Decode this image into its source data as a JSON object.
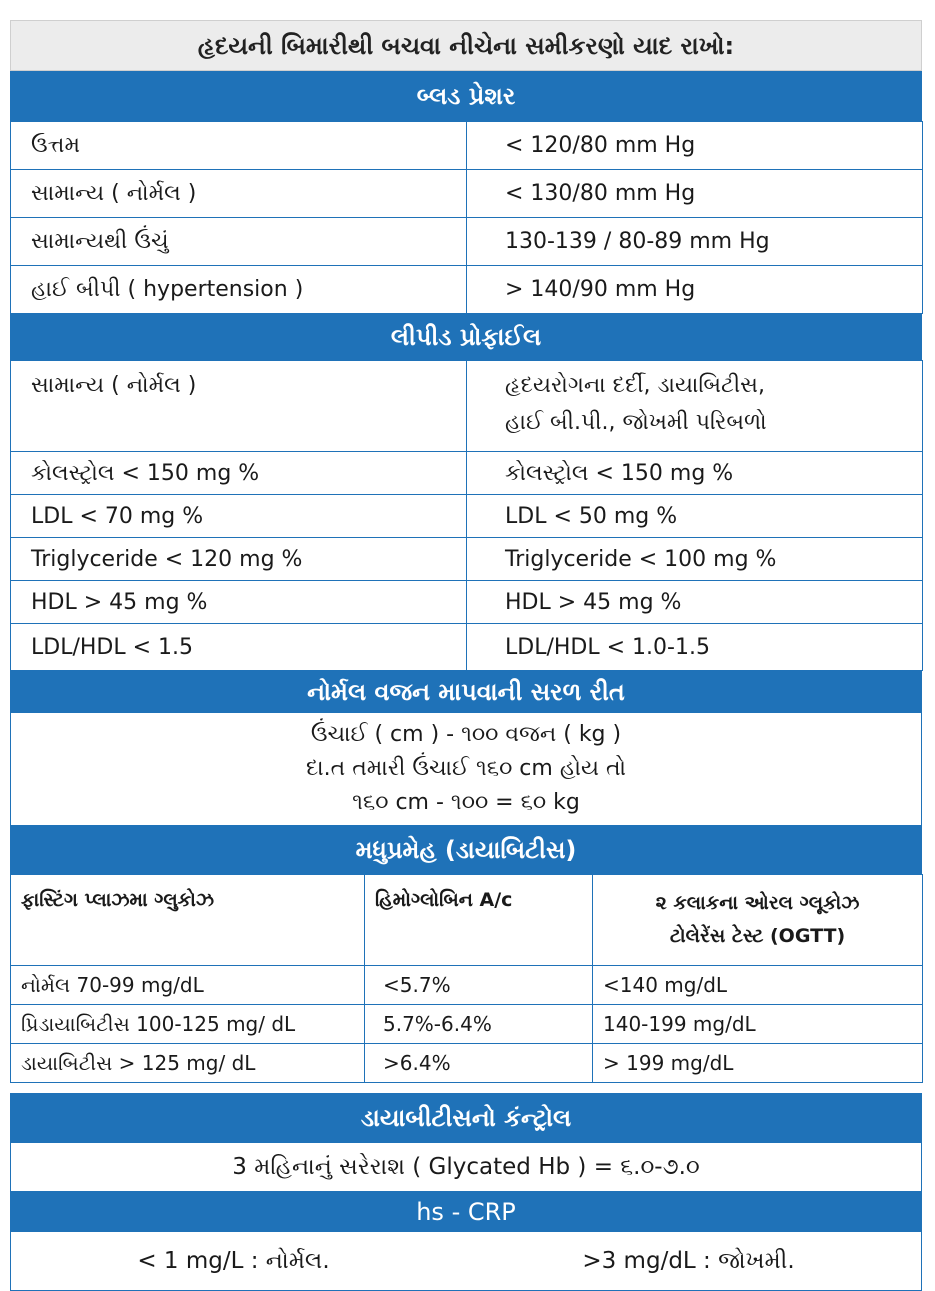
{
  "title": "હૃદયની બિમારીથી બચવા નીચેના સમીકરણો યાદ રાખો:",
  "blood_pressure": {
    "header": "બ્લડ પ્રેશર",
    "rows": [
      {
        "label": "ઉત્તમ",
        "value": "< 120/80 mm Hg"
      },
      {
        "label": "સામાન્ય ( નોર્મલ )",
        "value": "< 130/80 mm Hg"
      },
      {
        "label": "સામાન્યથી ઉંચું",
        "value": "130-139 / 80-89 mm Hg"
      },
      {
        "label": "હાઈ બીપી ( hypertension )",
        "value": "> 140/90 mm Hg"
      }
    ]
  },
  "lipid": {
    "header": "લીપીડ પ્રોફાઈલ",
    "col1_title": "સામાન્ય ( નોર્મલ )",
    "col2_title_line1": "હૃદયરોગના દર્દી, ડાયાબિટીસ,",
    "col2_title_line2": "હાઈ બી.પી., જોખમી પરિબળો",
    "rows": [
      {
        "normal": "કોલસ્ટ્રોલ < 150 mg %",
        "risk": "કોલસ્ટ્રોલ < 150 mg %"
      },
      {
        "normal": "LDL < 70 mg %",
        "risk": "LDL < 50 mg %"
      },
      {
        "normal": "Triglyceride < 120 mg %",
        "risk": "Triglyceride < 100 mg %"
      },
      {
        "normal": "HDL > 45 mg %",
        "risk": "HDL > 45 mg %"
      },
      {
        "normal": "LDL/HDL < 1.5",
        "risk": "LDL/HDL < 1.0-1.5"
      }
    ]
  },
  "weight": {
    "header": "નોર્મલ વજન માપવાની સરળ રીત",
    "line1": "ઉંચાઈ ( cm ) - ૧૦૦  વજન ( kg )",
    "line2": "દા.ત તમારી ઉંચાઈ ૧૬૦  cm  હોય તો",
    "line3": "૧૬૦  cm - ૧૦૦  = ૬૦ kg"
  },
  "diabetes": {
    "header": "મધુપ્રમેહ (ડાયાબિટીસ)",
    "col1_header": "ફાસ્ટિંગ પ્લાઝમા ગ્લુકોઝ",
    "col2_header": "હિમોગ્લોબિન A/c",
    "col3_header_line1": "૨ કલાકના ઓરલ ગ્લૂકોઝ",
    "col3_header_line2": "ટોલેરેંસ ટેસ્ટ (OGTT)",
    "rows": [
      {
        "fpg": "નોર્મલ 70-99 mg/dL",
        "hba1c": "<5.7%",
        "ogtt": "<140 mg/dL"
      },
      {
        "fpg": "પ્રિડાયાબિટીસ 100-125 mg/ dL",
        "hba1c": "5.7%-6.4%",
        "ogtt": " 140-199 mg/dL"
      },
      {
        "fpg": "ડાયાબિટીસ > 125 mg/ dL",
        "hba1c": ">6.4%",
        "ogtt": "> 199 mg/dL"
      }
    ]
  },
  "control": {
    "header": "ડાયાબીટીસનો કંન્ટ્રોલ",
    "text": "3 મહિનાનું સરેરાશ ( Glycated Hb ) = ૬.૦-૭.૦"
  },
  "crp": {
    "header": "hs - CRP",
    "normal": "< 1 mg/L : નોર્મલ.",
    "risk": ">3 mg/dL : જોખમી."
  },
  "colors": {
    "band": "#1f72b8",
    "title_bg": "#ececec"
  }
}
